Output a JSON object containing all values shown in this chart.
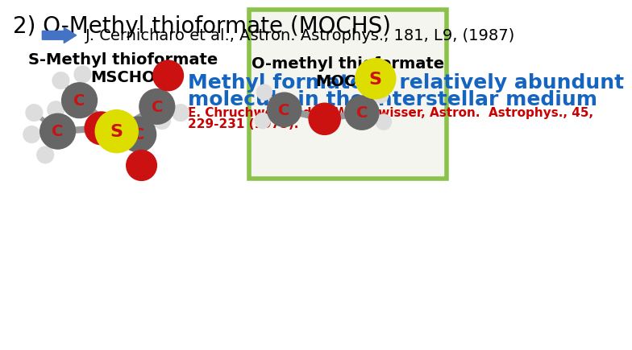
{
  "title": "2) O-Methyl thioformate (MOCHS)",
  "title_fontsize": 20,
  "title_color": "#000000",
  "ref_text": "J. Cernicharo et al., Astron. Astrophys., 181, L9, (1987)",
  "ref_fontsize": 14,
  "ref_color": "#000000",
  "heading1": "Methyl formate: a relatively abundunt",
  "heading2": "molecule in the interstellar medium",
  "heading_color": "#1565C0",
  "heading_fontsize": 18,
  "sub_ref": "E. Chruchwell and G. Winnewisser, Astron.  Astrophys., 45,",
  "sub_ref2": "229-231 (1975).",
  "sub_ref_color": "#CC0000",
  "sub_ref_fontsize": 11,
  "label_smcho": "S-Methyl thioformate\nMSCHO",
  "label_mochs": "O-methyl thioformate\nMOCHS",
  "label_fontsize": 13,
  "label_color": "#000000",
  "box_edge_color": "#8BC34A",
  "box_face_color": "#F5F5F0",
  "arrow_color": "#4472C4",
  "bg_color": "#FFFFFF",
  "atom_C_color": "#666666",
  "atom_O_color": "#CC1111",
  "atom_S_color": "#DDDD00",
  "atom_H_color": "#DDDDDD",
  "bond_color": "#999999"
}
